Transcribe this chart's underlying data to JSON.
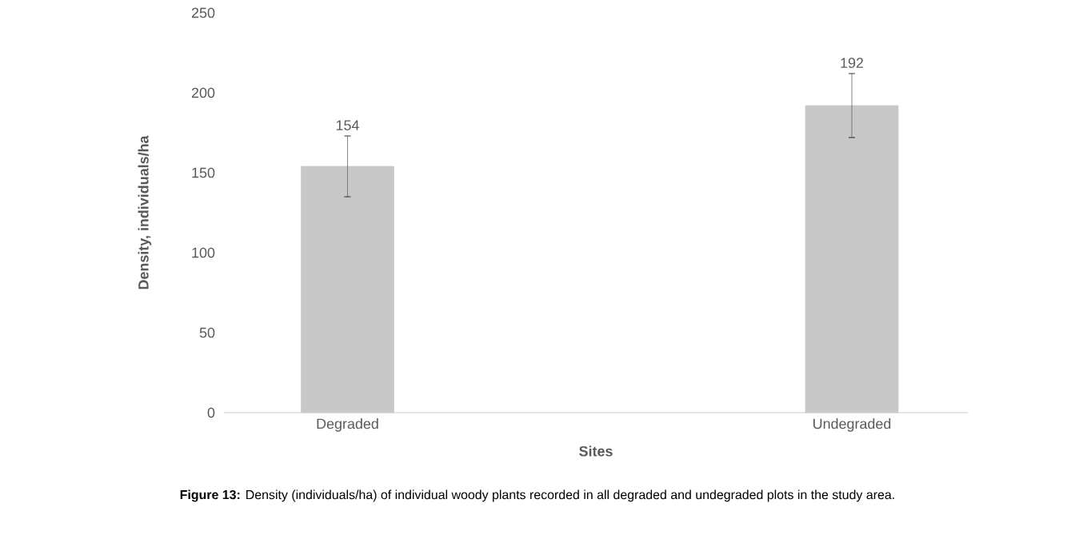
{
  "chart_data": {
    "type": "bar",
    "xlabel": "Sites",
    "ylabel": "Density, individuals/ha",
    "categories": [
      "Degraded",
      "Undegraded"
    ],
    "values": [
      154,
      192
    ],
    "errors": [
      19,
      20
    ],
    "color": "#c8c8c8",
    "ylim": [
      0,
      250
    ],
    "yticks": [
      0,
      50,
      100,
      150,
      200,
      250
    ],
    "data_labels": true,
    "annotations": [
      "**Figure 13:** Density (individuals/ha) of individual woody plants recorded in all degraded and undegraded plots in the study area."
    ]
  }
}
